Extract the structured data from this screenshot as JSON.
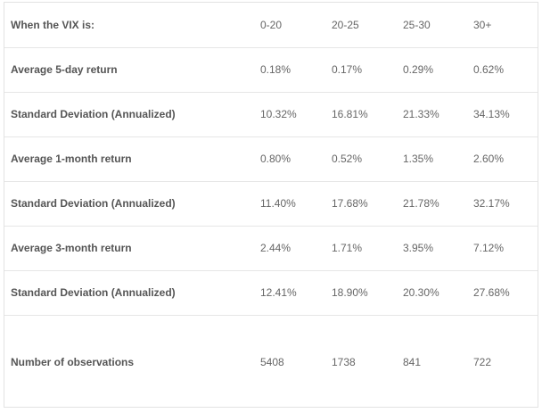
{
  "table": {
    "header": {
      "label": "When the VIX is:",
      "cols": [
        "0-20",
        "20-25",
        "25-30",
        "30+"
      ]
    },
    "rows": [
      {
        "label": "Average 5-day return",
        "values": [
          "0.18%",
          "0.17%",
          "0.29%",
          "0.62%"
        ]
      },
      {
        "label": "Standard Deviation (Annualized)",
        "values": [
          "10.32%",
          "16.81%",
          "21.33%",
          "34.13%"
        ]
      },
      {
        "label": "Average 1-month return",
        "values": [
          "0.80%",
          "0.52%",
          "1.35%",
          "2.60%"
        ]
      },
      {
        "label": "Standard Deviation (Annualized)",
        "values": [
          "11.40%",
          "17.68%",
          "21.78%",
          "32.17%"
        ]
      },
      {
        "label": "Average 3-month return",
        "values": [
          "2.44%",
          "1.71%",
          "3.95%",
          "7.12%"
        ]
      },
      {
        "label": "Standard Deviation (Annualized)",
        "values": [
          "12.41%",
          "18.90%",
          "20.30%",
          "27.68%"
        ]
      },
      {
        "label": "Number of observations",
        "values": [
          "5408",
          "1738",
          "841",
          "722"
        ]
      }
    ]
  }
}
